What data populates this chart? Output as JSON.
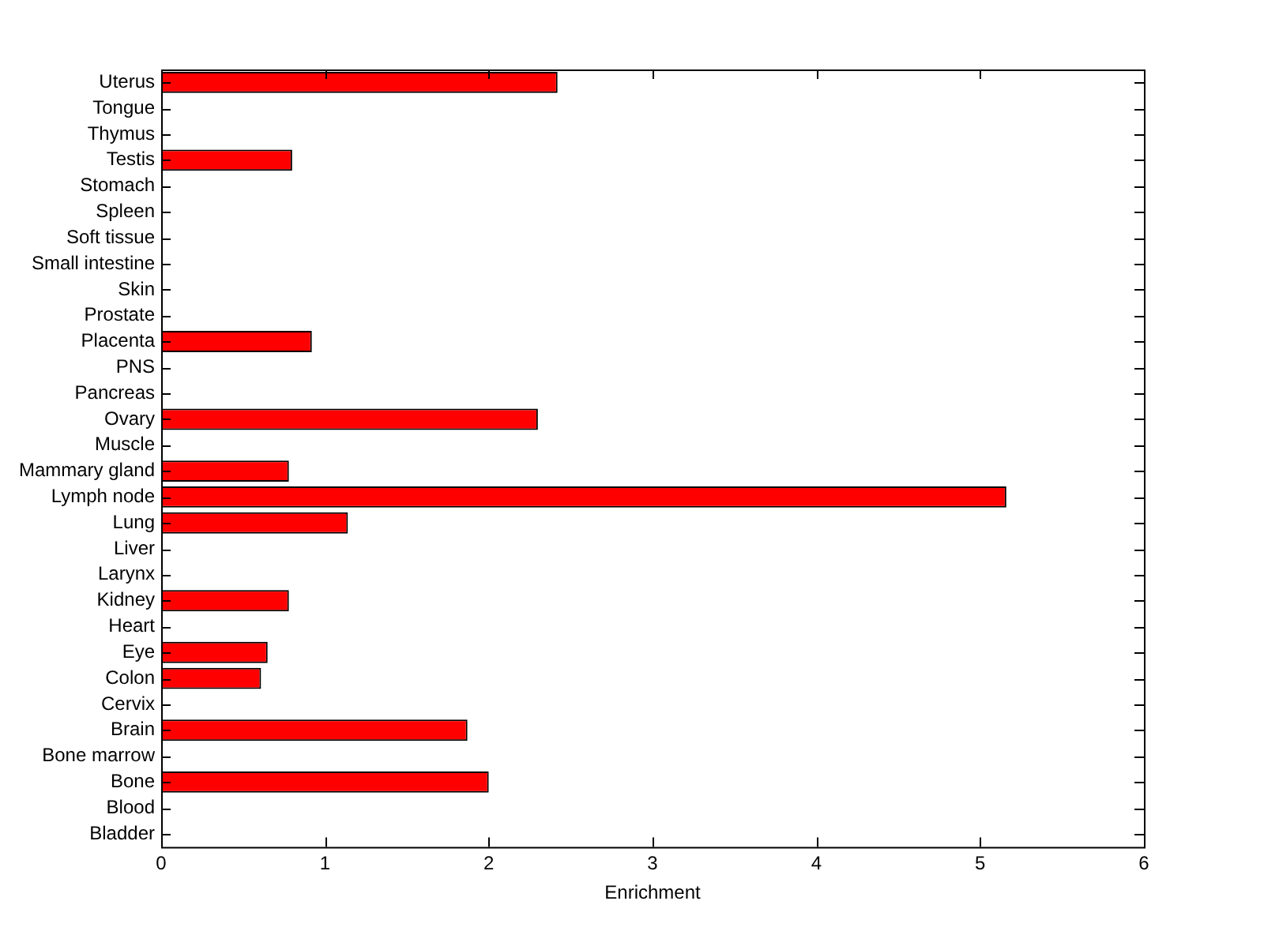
{
  "chart_data": {
    "type": "bar",
    "orientation": "horizontal",
    "xlabel": "Enrichment",
    "categories": [
      "Uterus",
      "Tongue",
      "Thymus",
      "Testis",
      "Stomach",
      "Spleen",
      "Soft tissue",
      "Small intestine",
      "Skin",
      "Prostate",
      "Placenta",
      "PNS",
      "Pancreas",
      "Ovary",
      "Muscle",
      "Mammary gland",
      "Lymph node",
      "Lung",
      "Liver",
      "Larynx",
      "Kidney",
      "Heart",
      "Eye",
      "Colon",
      "Cervix",
      "Brain",
      "Bone marrow",
      "Bone",
      "Blood",
      "Bladder"
    ],
    "values": [
      2.42,
      0,
      0,
      0.8,
      0,
      0,
      0,
      0,
      0,
      0,
      0.92,
      0,
      0,
      2.3,
      0,
      0.78,
      5.16,
      1.14,
      0,
      0,
      0.78,
      0,
      0.65,
      0.61,
      0,
      1.87,
      0,
      2.0,
      0,
      0
    ],
    "color": "#ff0000",
    "xlim": [
      0,
      6
    ],
    "xticks": [
      0,
      1,
      2,
      3,
      4,
      5,
      6
    ],
    "grid": false,
    "legend": false
  }
}
